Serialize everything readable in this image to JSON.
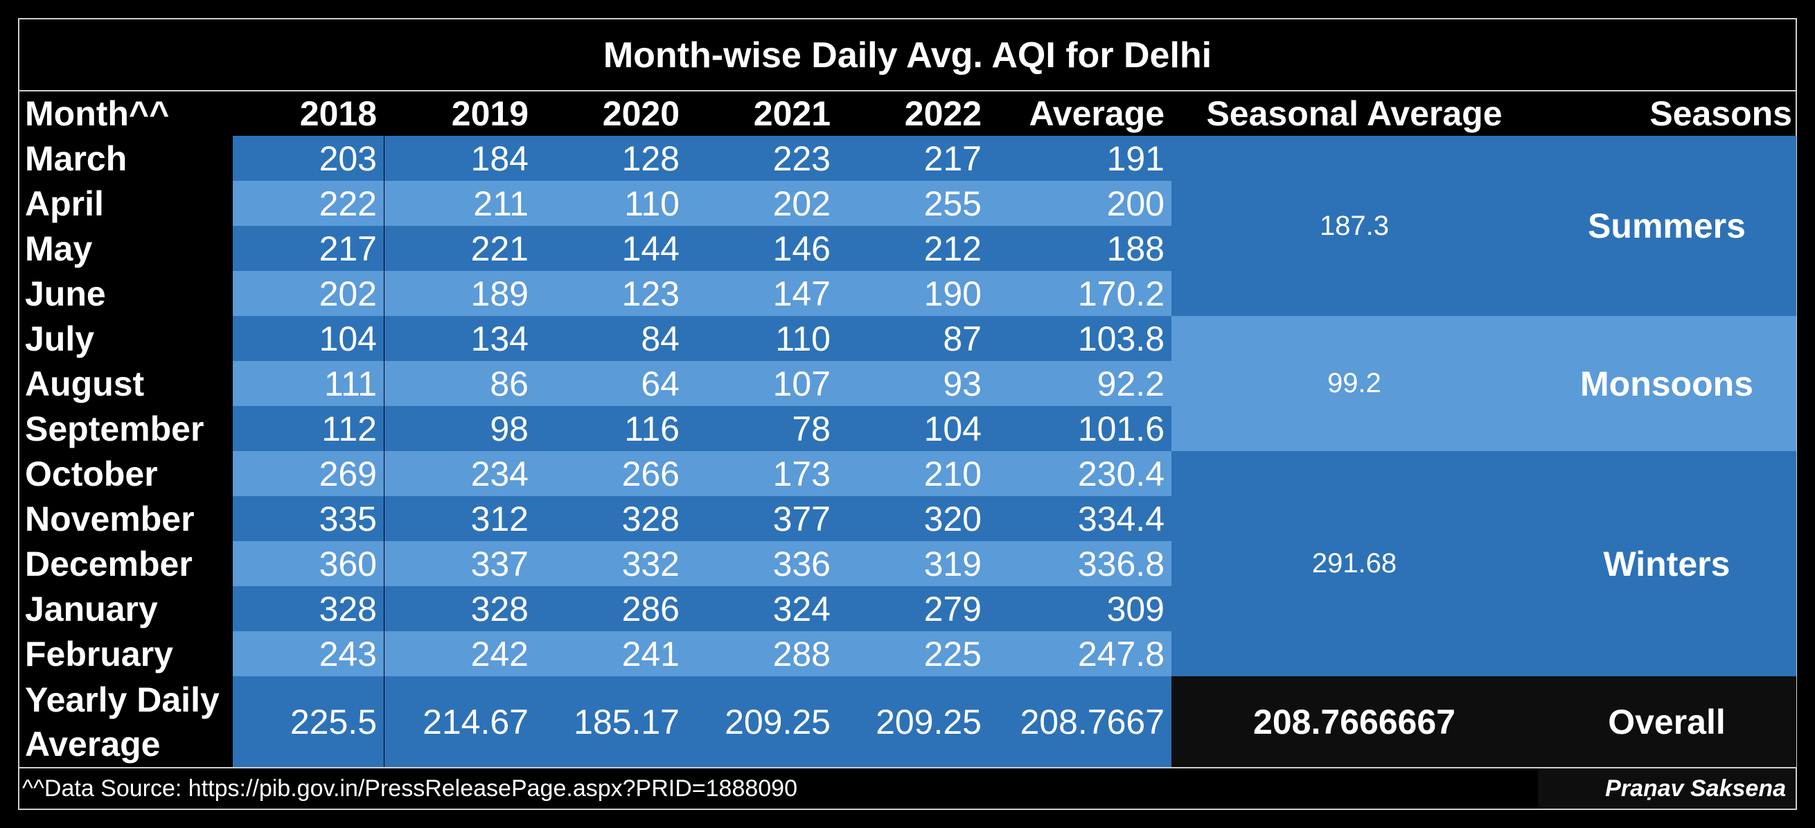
{
  "title": "Month-wise Daily Avg. AQI for Delhi",
  "headers": {
    "month": "Month^^",
    "years": [
      "2018",
      "2019",
      "2020",
      "2021",
      "2022"
    ],
    "average": "Average",
    "seasonal_average": "Seasonal Average",
    "seasons": "Seasons"
  },
  "rows": [
    {
      "month": "March",
      "values": [
        "203",
        "184",
        "128",
        "223",
        "217"
      ],
      "average": "191"
    },
    {
      "month": "April",
      "values": [
        "222",
        "211",
        "110",
        "202",
        "255"
      ],
      "average": "200"
    },
    {
      "month": "May",
      "values": [
        "217",
        "221",
        "144",
        "146",
        "212"
      ],
      "average": "188"
    },
    {
      "month": "June",
      "values": [
        "202",
        "189",
        "123",
        "147",
        "190"
      ],
      "average": "170.2"
    },
    {
      "month": "July",
      "values": [
        "104",
        "134",
        "84",
        "110",
        "87"
      ],
      "average": "103.8"
    },
    {
      "month": "August",
      "values": [
        "111",
        "86",
        "64",
        "107",
        "93"
      ],
      "average": "92.2"
    },
    {
      "month": "September",
      "values": [
        "112",
        "98",
        "116",
        "78",
        "104"
      ],
      "average": "101.6"
    },
    {
      "month": "October",
      "values": [
        "269",
        "234",
        "266",
        "173",
        "210"
      ],
      "average": "230.4"
    },
    {
      "month": "November",
      "values": [
        "335",
        "312",
        "328",
        "377",
        "320"
      ],
      "average": "334.4"
    },
    {
      "month": "December",
      "values": [
        "360",
        "337",
        "332",
        "336",
        "319"
      ],
      "average": "336.8"
    },
    {
      "month": "January",
      "values": [
        "328",
        "328",
        "286",
        "324",
        "279"
      ],
      "average": "309"
    },
    {
      "month": "February",
      "values": [
        "243",
        "242",
        "241",
        "288",
        "225"
      ],
      "average": "247.8"
    }
  ],
  "seasons": [
    {
      "seasonal_average": "187.3",
      "name": "Summers"
    },
    {
      "seasonal_average": "99.2",
      "name": "Monsoons"
    },
    {
      "seasonal_average": "291.68",
      "name": "Winters"
    }
  ],
  "yearly": {
    "label_line1": "Yearly Daily",
    "label_line2": "Average",
    "values": [
      "225.5",
      "214.67",
      "185.17",
      "209.25",
      "209.25"
    ],
    "average": "208.7667",
    "overall_value": "208.7666667",
    "overall_label": "Overall"
  },
  "footer": {
    "source": "^^Data Source: https://pib.gov.in/PressReleasePage.aspx?PRID=1888090",
    "credit": "Praṇav Saksena"
  },
  "colors": {
    "dark_blue": "#2d72b7",
    "light_blue": "#5b9bd8",
    "background": "#000000"
  }
}
